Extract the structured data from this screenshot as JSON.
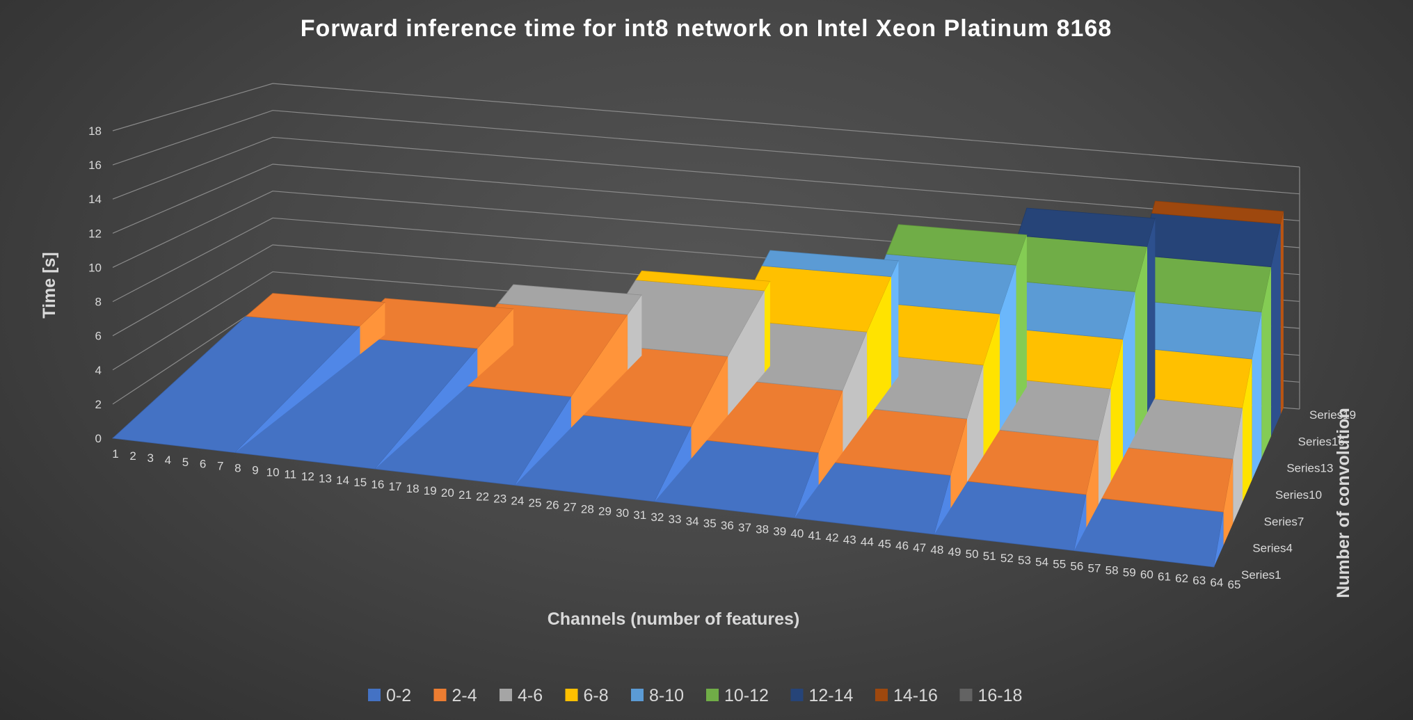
{
  "chart_data": {
    "type": "surface",
    "title": "Forward inference time for int8 network on Intel Xeon Platinum 8168",
    "xlabel": "Channels (number of features)",
    "ylabel": "Time [s]",
    "zlabel": "Number of convolution",
    "x_categories": [
      "1",
      "2",
      "3",
      "4",
      "5",
      "6",
      "7",
      "8",
      "9",
      "10",
      "11",
      "12",
      "13",
      "14",
      "15",
      "16",
      "17",
      "18",
      "19",
      "20",
      "21",
      "22",
      "23",
      "24",
      "25",
      "26",
      "27",
      "28",
      "29",
      "30",
      "31",
      "32",
      "33",
      "34",
      "35",
      "36",
      "37",
      "38",
      "39",
      "40",
      "41",
      "42",
      "43",
      "44",
      "45",
      "46",
      "47",
      "48",
      "49",
      "50",
      "51",
      "52",
      "53",
      "54",
      "55",
      "56",
      "57",
      "58",
      "59",
      "60",
      "61",
      "62",
      "63",
      "64",
      "65"
    ],
    "depth_categories": [
      "Series1",
      "Series4",
      "Series7",
      "Series10",
      "Series13",
      "Series16",
      "Series19"
    ],
    "y_ticks": [
      0,
      2,
      4,
      6,
      8,
      10,
      12,
      14,
      16,
      18
    ],
    "ylim": [
      0,
      18
    ],
    "step_channels": [
      8,
      16,
      24,
      32,
      40,
      48,
      56,
      64
    ],
    "step_peak_time": [
      2.4,
      2.7,
      4.5,
      6.3,
      8.6,
      11.3,
      13.3,
      14.6
    ],
    "legend": [
      {
        "label": "0-2",
        "color": "#4472C4"
      },
      {
        "label": "2-4",
        "color": "#ED7D31"
      },
      {
        "label": "4-6",
        "color": "#A5A5A5"
      },
      {
        "label": "6-8",
        "color": "#FFC000"
      },
      {
        "label": "8-10",
        "color": "#5B9BD5"
      },
      {
        "label": "10-12",
        "color": "#70AD47"
      },
      {
        "label": "12-14",
        "color": "#264478"
      },
      {
        "label": "14-16",
        "color": "#9E480E"
      },
      {
        "label": "16-18",
        "color": "#636363"
      }
    ],
    "legend_position": "bottom",
    "grid": true
  }
}
